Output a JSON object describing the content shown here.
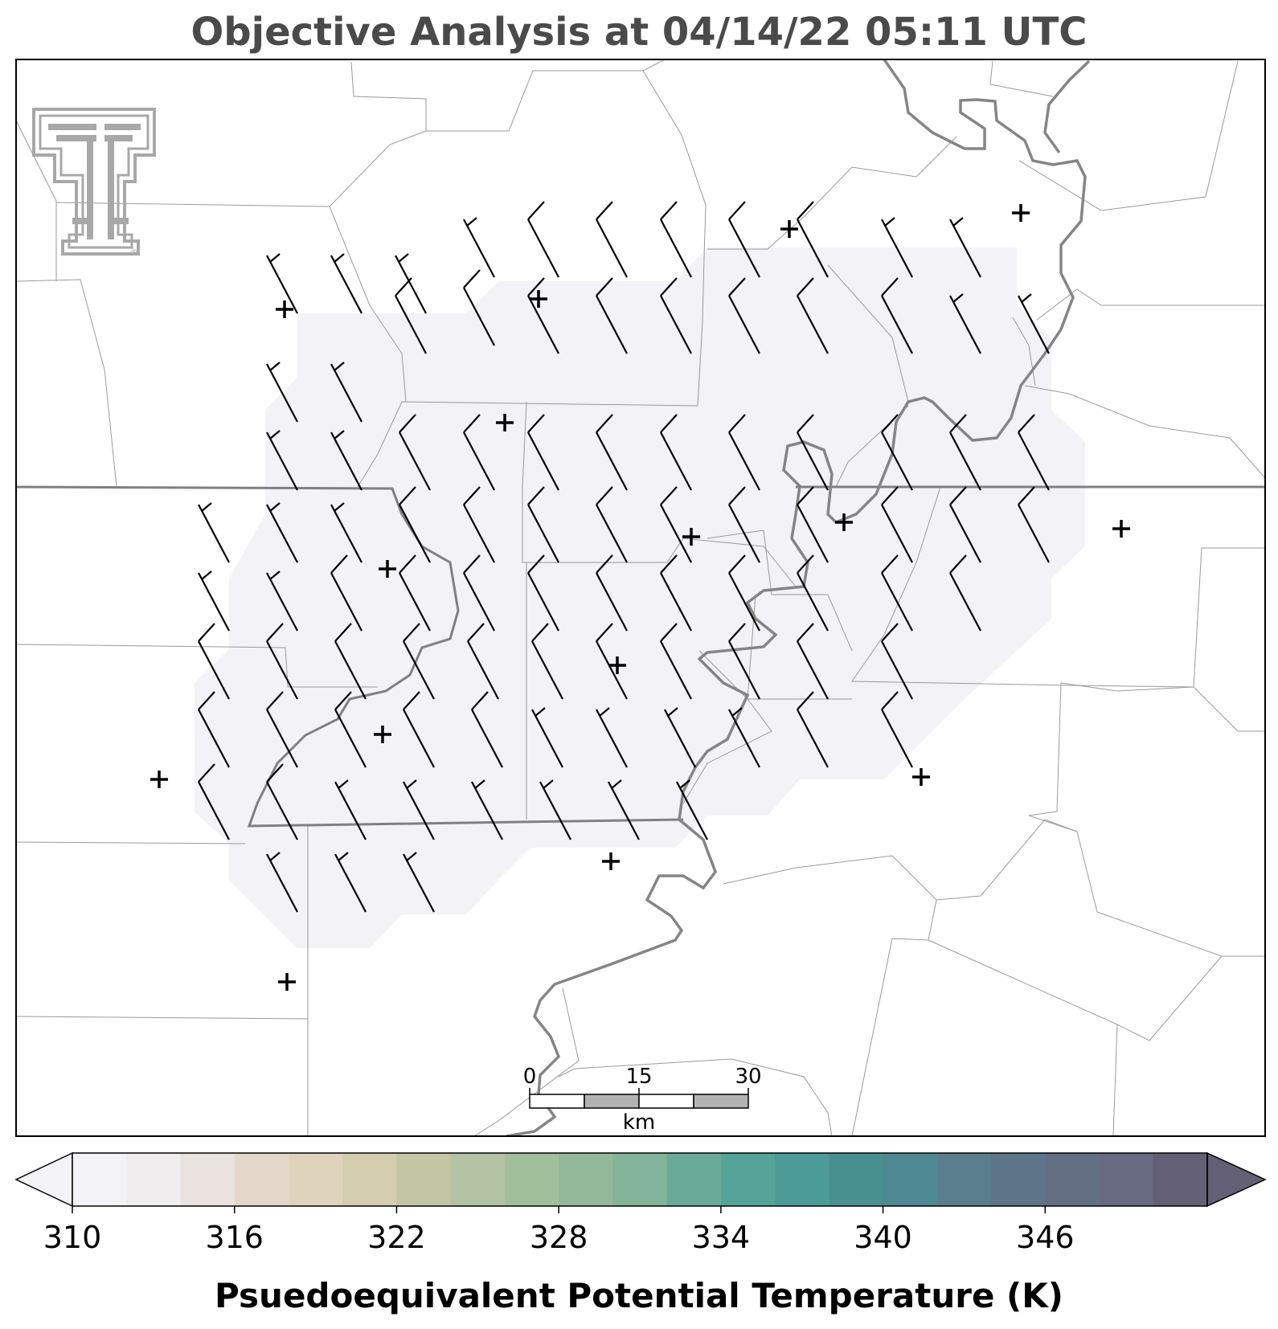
{
  "title": "Objective Analysis at 04/14/22 05:11 UTC",
  "scale_bar": {
    "labels": [
      "0",
      "15",
      "30"
    ],
    "unit": "km"
  },
  "colorbar": {
    "label": "Psuedoequivalent Potential Temperature (K)",
    "ticks": [
      "310",
      "316",
      "322",
      "328",
      "334",
      "340",
      "346"
    ],
    "min": 310,
    "max": 350,
    "step": 2,
    "colors": [
      "#f3f2f7",
      "#efedee",
      "#e9e2de",
      "#e4d8cb",
      "#e0d3bc",
      "#d4cdb0",
      "#c2c6a3",
      "#b3c3a3",
      "#a2bf9b",
      "#93b99a",
      "#82b49a",
      "#6aaa98",
      "#56a398",
      "#4d9b98",
      "#48908f",
      "#4e8893",
      "#5a7e8d",
      "#5e7589",
      "#637084",
      "#686a81",
      "#635f74"
    ],
    "extend": "both"
  },
  "map": {
    "shaded_region_value": 310,
    "shaded_color": "#f3f2f7",
    "logo": "texas-tech-double-t-logo"
  }
}
